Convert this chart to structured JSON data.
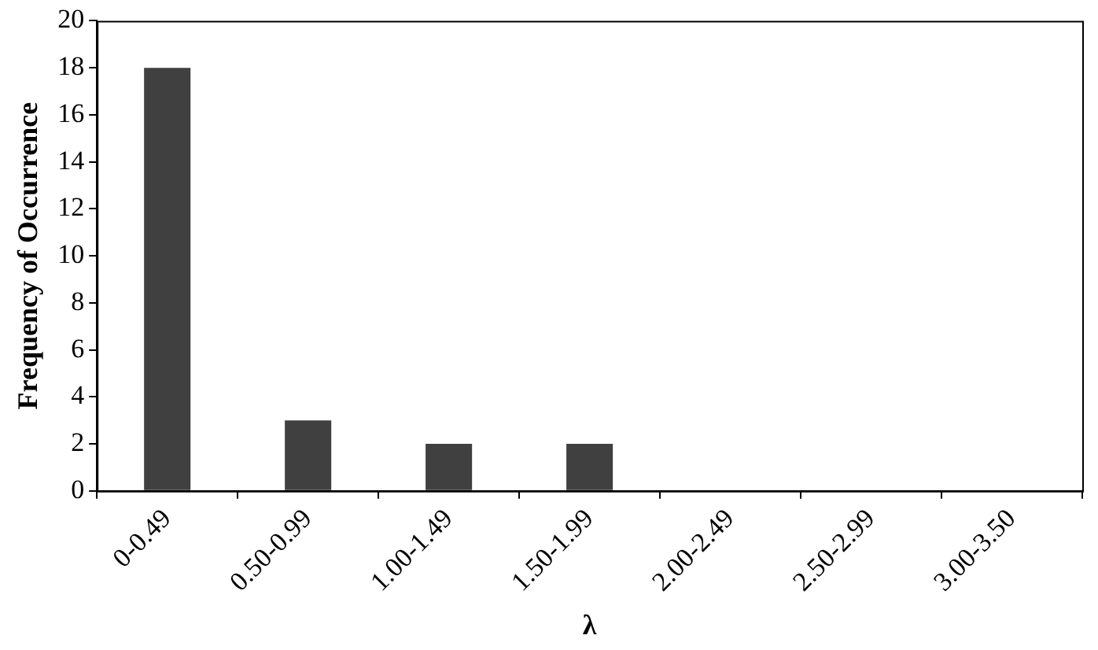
{
  "chart_data": {
    "type": "bar",
    "xlabel": "λ",
    "ylabel": "Frequency of Occurrence",
    "categories": [
      "0-0.49",
      "0.50-0.99",
      "1.00-1.49",
      "1.50-1.99",
      "2.00-2.49",
      "2.50-2.99",
      "3.00-3.50"
    ],
    "values": [
      18,
      3,
      2,
      2,
      0,
      0,
      0
    ],
    "color": "#404040",
    "ylim": [
      0,
      20
    ],
    "yticks": [
      0,
      2,
      4,
      6,
      8,
      10,
      12,
      14,
      16,
      18,
      20
    ],
    "grid": false,
    "legend": false
  }
}
